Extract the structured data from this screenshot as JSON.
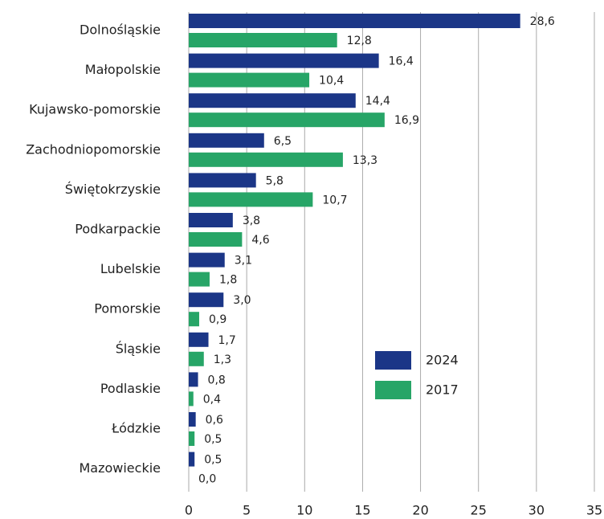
{
  "chart_data": {
    "type": "bar",
    "orientation": "horizontal",
    "categories": [
      "Dolnośląskie",
      "Małopolskie",
      "Kujawsko-pomorskie",
      "Zachodniopomorskie",
      "Świętokrzyskie",
      "Podkarpackie",
      "Lubelskie",
      "Pomorskie",
      "Śląskie",
      "Podlaskie",
      "Łódzkie",
      "Mazowieckie"
    ],
    "series": [
      {
        "name": "2024",
        "color": "#1b3687",
        "values": [
          28.6,
          16.4,
          14.4,
          6.5,
          5.8,
          3.8,
          3.1,
          3.0,
          1.7,
          0.8,
          0.6,
          0.5
        ],
        "value_labels": [
          "28,6",
          "16,4",
          "14,4",
          "6,5",
          "5,8",
          "3,8",
          "3,1",
          "3,0",
          "1,7",
          "0,8",
          "0,6",
          "0,5"
        ]
      },
      {
        "name": "2017",
        "color": "#27a567",
        "values": [
          12.8,
          10.4,
          16.9,
          13.3,
          10.7,
          4.6,
          1.8,
          0.9,
          1.3,
          0.4,
          0.5,
          0.0
        ],
        "value_labels": [
          "12,8",
          "10,4",
          "16,9",
          "13,3",
          "10,7",
          "4,6",
          "1,8",
          "0,9",
          "1,3",
          "0,4",
          "0,5",
          "0,0"
        ]
      }
    ],
    "xlim": [
      0,
      35
    ],
    "xticks": [
      0,
      5,
      10,
      15,
      20,
      25,
      30,
      35
    ],
    "grid": true,
    "legend": "right"
  }
}
